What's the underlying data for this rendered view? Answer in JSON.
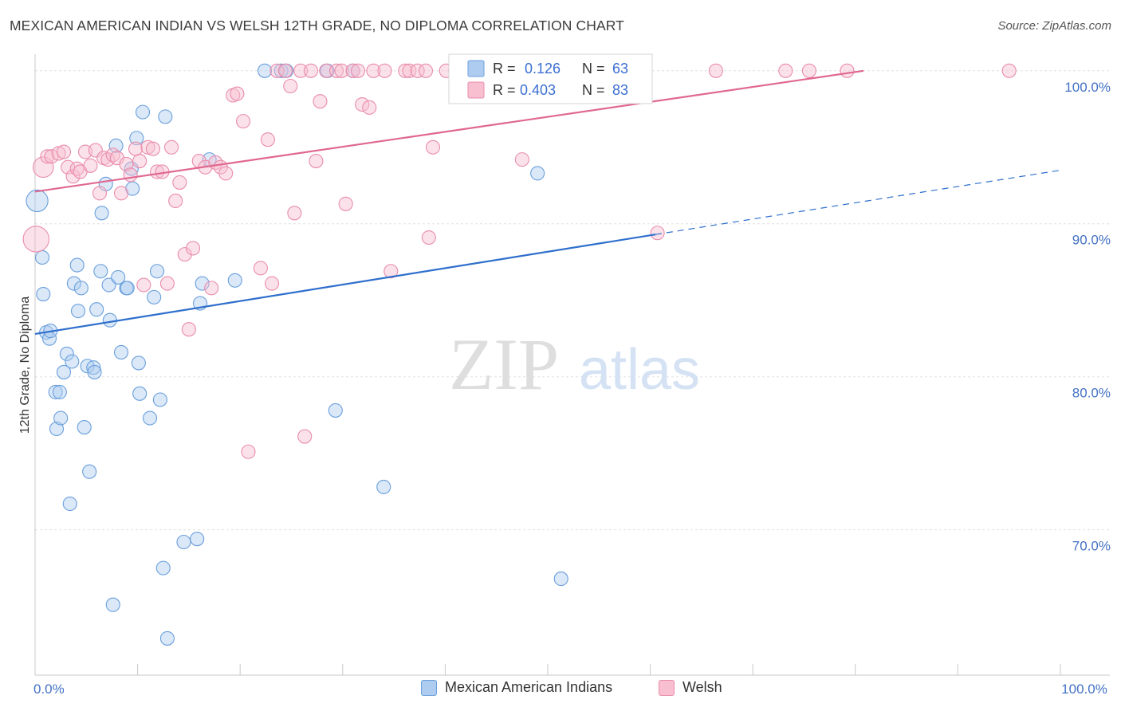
{
  "header": {
    "title": "MEXICAN AMERICAN INDIAN VS WELSH 12TH GRADE, NO DIPLOMA CORRELATION CHART",
    "source": "Source: ZipAtlas.com"
  },
  "watermark": {
    "zip": "ZIP",
    "atlas": "atlas"
  },
  "colors": {
    "blue_fill": "#aecbf0",
    "blue_stroke": "#6a9fdc",
    "blue_line": "#2f6fcc",
    "pink_fill": "#f7bfd0",
    "pink_stroke": "#e98cab",
    "pink_line": "#e06890",
    "tick_label": "#4472c4",
    "grid": "#e0e0e0"
  },
  "legend_top": {
    "rows": [
      {
        "r_label": "R =",
        "r_value": "0.126",
        "n_label": "N =",
        "n_value": "63",
        "series": "blue"
      },
      {
        "r_label": "R =",
        "r_value": "0.403",
        "n_label": "N =",
        "n_value": "83",
        "series": "pink"
      }
    ]
  },
  "legend_bottom": {
    "items": [
      {
        "label": "Mexican American Indians",
        "series": "blue"
      },
      {
        "label": "Welsh",
        "series": "pink"
      }
    ]
  },
  "chart_data": {
    "type": "scatter",
    "title": "MEXICAN AMERICAN INDIAN VS WELSH 12TH GRADE, NO DIPLOMA CORRELATION CHART",
    "xlabel": "",
    "ylabel": "12th Grade, No Diploma",
    "xlim": [
      0,
      100
    ],
    "ylim": [
      60.5,
      101.5
    ],
    "x_tick_labels": [
      {
        "value": 0,
        "label": "0.0%"
      },
      {
        "value": 100,
        "label": "100.0%"
      }
    ],
    "x_minor_ticks": [
      10,
      20,
      30,
      40,
      50,
      60,
      70,
      80,
      90,
      100
    ],
    "y_ticks": [
      {
        "value": 100,
        "label": "100.0%"
      },
      {
        "value": 90,
        "label": "90.0%"
      },
      {
        "value": 80,
        "label": "80.0%"
      },
      {
        "value": 70,
        "label": "70.0%"
      }
    ],
    "grid": true,
    "legend_position": "top-center",
    "series": [
      {
        "name": "Mexican American Indians",
        "color": "blue",
        "r": 0.126,
        "n": 63,
        "trend": {
          "x0": 0,
          "y0": 82.8,
          "x1": 60.5,
          "y1": 89.3,
          "dash_x1": 100,
          "dash_y1": 93.5
        },
        "points": [
          [
            0.2,
            91.5,
            1.6
          ],
          [
            0.7,
            87.8,
            1
          ],
          [
            0.8,
            85.4,
            1
          ],
          [
            1.1,
            82.9,
            1
          ],
          [
            1.4,
            82.5,
            1
          ],
          [
            1.5,
            83.0,
            1
          ],
          [
            2.0,
            79.0,
            1
          ],
          [
            2.1,
            76.6,
            1
          ],
          [
            2.4,
            79.0,
            1
          ],
          [
            2.5,
            77.3,
            1
          ],
          [
            2.8,
            80.3,
            1
          ],
          [
            3.1,
            81.5,
            1
          ],
          [
            3.4,
            71.7,
            1
          ],
          [
            3.6,
            81.0,
            1
          ],
          [
            3.8,
            86.1,
            1
          ],
          [
            4.1,
            87.3,
            1
          ],
          [
            4.2,
            84.3,
            1
          ],
          [
            4.5,
            85.8,
            1
          ],
          [
            4.8,
            76.7,
            1
          ],
          [
            5.1,
            80.7,
            1
          ],
          [
            5.3,
            73.8,
            1
          ],
          [
            5.7,
            80.6,
            1
          ],
          [
            5.8,
            80.3,
            1
          ],
          [
            6.0,
            84.4,
            1
          ],
          [
            6.4,
            86.9,
            1
          ],
          [
            6.5,
            90.7,
            1
          ],
          [
            6.9,
            92.6,
            1
          ],
          [
            7.2,
            86.0,
            1
          ],
          [
            7.3,
            83.7,
            1
          ],
          [
            7.6,
            65.1,
            1
          ],
          [
            7.9,
            95.1,
            1
          ],
          [
            8.1,
            86.5,
            1
          ],
          [
            8.4,
            81.6,
            1
          ],
          [
            8.9,
            85.8,
            1
          ],
          [
            9.0,
            85.8,
            1
          ],
          [
            9.4,
            93.6,
            1
          ],
          [
            9.5,
            92.3,
            1
          ],
          [
            9.9,
            95.6,
            1
          ],
          [
            10.1,
            80.9,
            1
          ],
          [
            10.2,
            78.9,
            1
          ],
          [
            10.5,
            97.3,
            1
          ],
          [
            11.2,
            77.3,
            1
          ],
          [
            11.6,
            85.2,
            1
          ],
          [
            11.9,
            86.9,
            1
          ],
          [
            12.2,
            78.5,
            1
          ],
          [
            12.5,
            67.5,
            1
          ],
          [
            12.9,
            62.9,
            1
          ],
          [
            12.7,
            97.0,
            1
          ],
          [
            14.5,
            69.2,
            1
          ],
          [
            15.8,
            69.4,
            1
          ],
          [
            16.1,
            84.8,
            1
          ],
          [
            16.3,
            86.1,
            1
          ],
          [
            17.0,
            94.2,
            1
          ],
          [
            19.5,
            86.3,
            1
          ],
          [
            22.4,
            100.0,
            1
          ],
          [
            24.0,
            100.0,
            1
          ],
          [
            24.5,
            100.0,
            1
          ],
          [
            28.5,
            100.0,
            1
          ],
          [
            31.0,
            100.0,
            1
          ],
          [
            29.3,
            77.8,
            1
          ],
          [
            34.0,
            72.8,
            1
          ],
          [
            49.0,
            93.3,
            1
          ],
          [
            51.3,
            66.8,
            1
          ]
        ]
      },
      {
        "name": "Welsh",
        "color": "pink",
        "r": 0.403,
        "n": 83,
        "trend": {
          "x0": 0,
          "y0": 92.1,
          "x1": 80.8,
          "y1": 100.0
        },
        "points": [
          [
            0.1,
            89.0,
            1.9
          ],
          [
            0.8,
            93.7,
            1.5
          ],
          [
            1.2,
            94.4,
            1
          ],
          [
            1.6,
            94.4,
            1
          ],
          [
            2.3,
            94.6,
            1
          ],
          [
            2.8,
            94.7,
            1
          ],
          [
            3.2,
            93.7,
            1
          ],
          [
            3.7,
            93.1,
            1
          ],
          [
            4.1,
            93.6,
            1
          ],
          [
            4.4,
            93.4,
            1
          ],
          [
            4.9,
            94.7,
            1
          ],
          [
            5.4,
            93.8,
            1
          ],
          [
            5.9,
            94.8,
            1
          ],
          [
            6.3,
            92.0,
            1
          ],
          [
            6.7,
            94.3,
            1
          ],
          [
            7.1,
            94.2,
            1
          ],
          [
            7.6,
            94.5,
            1
          ],
          [
            8.0,
            94.3,
            1
          ],
          [
            8.4,
            92.0,
            1
          ],
          [
            8.9,
            93.9,
            1
          ],
          [
            9.3,
            93.2,
            1
          ],
          [
            9.8,
            94.9,
            1
          ],
          [
            10.2,
            94.1,
            1
          ],
          [
            10.6,
            86.0,
            1
          ],
          [
            11.0,
            95.0,
            1
          ],
          [
            11.5,
            94.9,
            1
          ],
          [
            11.9,
            93.4,
            1
          ],
          [
            12.4,
            93.4,
            1
          ],
          [
            12.9,
            86.1,
            1
          ],
          [
            13.3,
            95.0,
            1
          ],
          [
            13.7,
            91.5,
            1
          ],
          [
            14.1,
            92.7,
            1
          ],
          [
            14.6,
            88.0,
            1
          ],
          [
            15.0,
            83.1,
            1
          ],
          [
            15.4,
            88.4,
            1
          ],
          [
            16.0,
            94.1,
            1
          ],
          [
            16.6,
            93.7,
            1
          ],
          [
            17.2,
            85.8,
            1
          ],
          [
            17.6,
            94.0,
            1
          ],
          [
            18.1,
            93.7,
            1
          ],
          [
            18.6,
            93.3,
            1
          ],
          [
            19.3,
            98.4,
            1
          ],
          [
            19.7,
            98.5,
            1
          ],
          [
            20.3,
            96.7,
            1
          ],
          [
            20.8,
            75.1,
            1
          ],
          [
            22.0,
            87.1,
            1
          ],
          [
            22.7,
            95.5,
            1
          ],
          [
            23.1,
            86.1,
            1
          ],
          [
            23.6,
            100.0,
            1
          ],
          [
            24.4,
            100.0,
            1
          ],
          [
            24.9,
            99.0,
            1
          ],
          [
            25.3,
            90.7,
            1
          ],
          [
            25.9,
            100.0,
            1
          ],
          [
            26.3,
            76.1,
            1
          ],
          [
            26.9,
            100.0,
            1
          ],
          [
            27.4,
            94.1,
            1
          ],
          [
            27.8,
            98.0,
            1
          ],
          [
            28.4,
            100.0,
            1
          ],
          [
            29.4,
            100.0,
            1
          ],
          [
            29.9,
            100.0,
            1
          ],
          [
            30.3,
            91.3,
            1
          ],
          [
            31.0,
            100.0,
            1
          ],
          [
            31.5,
            100.0,
            1
          ],
          [
            31.9,
            97.8,
            1
          ],
          [
            32.6,
            97.6,
            1
          ],
          [
            33.0,
            100.0,
            1
          ],
          [
            34.1,
            100.0,
            1
          ],
          [
            34.7,
            86.9,
            1
          ],
          [
            36.1,
            100.0,
            1
          ],
          [
            36.5,
            100.0,
            1
          ],
          [
            37.3,
            100.0,
            1
          ],
          [
            38.1,
            100.0,
            1
          ],
          [
            38.4,
            89.1,
            1
          ],
          [
            38.8,
            95.0,
            1
          ],
          [
            40.1,
            100.0,
            1
          ],
          [
            41.0,
            100.0,
            1
          ],
          [
            47.5,
            94.2,
            1
          ],
          [
            60.7,
            89.4,
            1
          ],
          [
            66.4,
            100.0,
            1
          ],
          [
            73.2,
            100.0,
            1
          ],
          [
            75.5,
            100.0,
            1
          ],
          [
            79.2,
            100.0,
            1
          ],
          [
            95.0,
            100.0,
            1
          ]
        ]
      }
    ]
  }
}
